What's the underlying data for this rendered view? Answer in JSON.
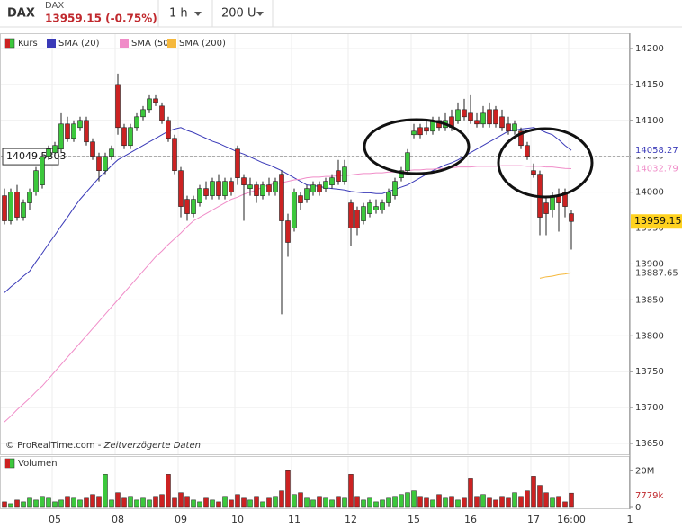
{
  "header": {
    "symbol": "DAX",
    "name": "DAX",
    "price": "13959.15 (-0.75%)",
    "interval": "1 h",
    "units": "200 U"
  },
  "chart_data": {
    "type": "candlestick",
    "candle_name": "Kurs",
    "up_color": "#3cc83c",
    "down_color": "#cc2222",
    "categories": [
      null,
      null,
      null,
      null,
      null,
      null,
      null,
      null,
      "05",
      null,
      null,
      null,
      null,
      null,
      null,
      null,
      null,
      null,
      "08",
      null,
      null,
      null,
      null,
      null,
      null,
      null,
      null,
      null,
      "09",
      null,
      null,
      null,
      null,
      null,
      null,
      null,
      null,
      "10",
      null,
      null,
      null,
      null,
      null,
      null,
      null,
      null,
      "11",
      null,
      null,
      null,
      null,
      null,
      null,
      null,
      null,
      "12",
      null,
      null,
      null,
      null,
      null,
      null,
      null,
      null,
      null,
      "15",
      null,
      null,
      null,
      null,
      null,
      null,
      null,
      null,
      "16",
      null,
      null,
      null,
      null,
      null,
      null,
      null,
      null,
      null,
      "17",
      null,
      null,
      null,
      null,
      null,
      "16:00"
    ],
    "candles": [
      [
        13995,
        14005,
        13955,
        13960
      ],
      [
        13960,
        14005,
        13955,
        14000
      ],
      [
        14000,
        14010,
        13960,
        13965
      ],
      [
        13965,
        13990,
        13960,
        13985
      ],
      [
        13985,
        14005,
        13975,
        14000
      ],
      [
        14000,
        14035,
        13995,
        14030
      ],
      [
        14010,
        14055,
        14005,
        14050
      ],
      [
        14050,
        14065,
        14045,
        14060
      ],
      [
        14055,
        14070,
        14050,
        14065
      ],
      [
        14060,
        14110,
        14055,
        14095
      ],
      [
        14095,
        14105,
        14070,
        14075
      ],
      [
        14075,
        14100,
        14070,
        14095
      ],
      [
        14090,
        14105,
        14085,
        14100
      ],
      [
        14100,
        14105,
        14065,
        14070
      ],
      [
        14070,
        14075,
        14045,
        14050
      ],
      [
        14050,
        14055,
        14015,
        14030
      ],
      [
        14030,
        14055,
        14025,
        14050
      ],
      [
        14050,
        14065,
        14045,
        14060
      ],
      [
        14150,
        14165,
        14080,
        14090
      ],
      [
        14090,
        14095,
        14060,
        14065
      ],
      [
        14065,
        14095,
        14060,
        14090
      ],
      [
        14090,
        14110,
        14085,
        14105
      ],
      [
        14105,
        14120,
        14100,
        14115
      ],
      [
        14115,
        14135,
        14110,
        14130
      ],
      [
        14130,
        14135,
        14120,
        14125
      ],
      [
        14120,
        14125,
        14095,
        14100
      ],
      [
        14100,
        14105,
        14070,
        14075
      ],
      [
        14075,
        14080,
        14025,
        14030
      ],
      [
        14030,
        14035,
        13965,
        13980
      ],
      [
        13990,
        13995,
        13960,
        13970
      ],
      [
        13970,
        13995,
        13965,
        13990
      ],
      [
        13985,
        14010,
        13980,
        14005
      ],
      [
        14005,
        14015,
        13990,
        13995
      ],
      [
        13995,
        14020,
        13990,
        14015
      ],
      [
        14015,
        14025,
        13990,
        13995
      ],
      [
        13995,
        14020,
        13990,
        14015
      ],
      [
        14015,
        14020,
        13995,
        14000
      ],
      [
        14060,
        14065,
        14010,
        14020
      ],
      [
        14020,
        14025,
        13960,
        14010
      ],
      [
        14005,
        14020,
        13995,
        14010
      ],
      [
        14010,
        14015,
        13985,
        13995
      ],
      [
        13995,
        14015,
        13990,
        14010
      ],
      [
        14010,
        14020,
        13995,
        14000
      ],
      [
        14000,
        14020,
        13995,
        14015
      ],
      [
        14025,
        14030,
        13830,
        13960
      ],
      [
        13960,
        13970,
        13910,
        13930
      ],
      [
        13950,
        14005,
        13945,
        14000
      ],
      [
        13995,
        14000,
        13975,
        13985
      ],
      [
        13990,
        14010,
        13985,
        14005
      ],
      [
        14000,
        14015,
        13995,
        14010
      ],
      [
        14010,
        14015,
        13995,
        14000
      ],
      [
        14005,
        14020,
        14000,
        14015
      ],
      [
        14010,
        14025,
        14005,
        14020
      ],
      [
        14030,
        14045,
        14010,
        14015
      ],
      [
        14015,
        14045,
        14010,
        14035
      ],
      [
        13985,
        13990,
        13925,
        13950
      ],
      [
        13975,
        13980,
        13940,
        13950
      ],
      [
        13960,
        13985,
        13955,
        13980
      ],
      [
        13970,
        13990,
        13965,
        13985
      ],
      [
        13975,
        13990,
        13970,
        13980
      ],
      [
        13975,
        13990,
        13970,
        13985
      ],
      [
        13985,
        14005,
        13980,
        14000
      ],
      [
        13995,
        14020,
        13990,
        14015
      ],
      [
        14020,
        14035,
        14015,
        14030
      ],
      [
        14030,
        14060,
        14025,
        14055
      ],
      [
        14080,
        14095,
        14075,
        14085
      ],
      [
        14090,
        14095,
        14075,
        14080
      ],
      [
        14090,
        14100,
        14080,
        14085
      ],
      [
        14085,
        14105,
        14080,
        14100
      ],
      [
        14100,
        14105,
        14085,
        14090
      ],
      [
        14090,
        14110,
        14085,
        14100
      ],
      [
        14105,
        14115,
        14085,
        14090
      ],
      [
        14100,
        14125,
        14095,
        14115
      ],
      [
        14115,
        14130,
        14100,
        14105
      ],
      [
        14110,
        14135,
        14095,
        14100
      ],
      [
        14100,
        14110,
        14090,
        14095
      ],
      [
        14095,
        14120,
        14090,
        14110
      ],
      [
        14115,
        14125,
        14090,
        14095
      ],
      [
        14115,
        14120,
        14090,
        14095
      ],
      [
        14105,
        14115,
        14085,
        14090
      ],
      [
        14095,
        14105,
        14080,
        14085
      ],
      [
        14085,
        14100,
        14080,
        14095
      ],
      [
        14085,
        14090,
        14060,
        14065
      ],
      [
        14065,
        14070,
        14045,
        14050
      ],
      [
        14030,
        14040,
        14020,
        14025
      ],
      [
        14025,
        14030,
        13940,
        13965
      ],
      [
        13985,
        13995,
        13940,
        13970
      ],
      [
        13975,
        14000,
        13965,
        13995
      ],
      [
        13995,
        14005,
        13945,
        13985
      ],
      [
        14000,
        14005,
        13965,
        13980
      ],
      [
        13970,
        13975,
        13920,
        13959.15
      ]
    ],
    "series": [
      {
        "name": "SMA (20)",
        "color": "#3a3ab8",
        "values": [
          13860,
          13868,
          13875,
          13883,
          13890,
          13903,
          13915,
          13928,
          13940,
          13953,
          13965,
          13978,
          13990,
          14000,
          14010,
          14020,
          14028,
          14037,
          14045,
          14050,
          14055,
          14060,
          14065,
          14070,
          14075,
          14080,
          14085,
          14088,
          14090,
          14086,
          14083,
          14079,
          14075,
          14071,
          14068,
          14064,
          14060,
          14056,
          14053,
          14049,
          14045,
          14041,
          14038,
          14034,
          14030,
          14025,
          14020,
          14015,
          14010,
          14009,
          14008,
          14006,
          14005,
          14004,
          14003,
          14001,
          14000,
          13999,
          13999,
          13998,
          13998,
          14001,
          14004,
          14007,
          14010,
          14015,
          14020,
          14025,
          14030,
          14034,
          14038,
          14041,
          14045,
          14050,
          14055,
          14060,
          14065,
          14070,
          14075,
          14080,
          14085,
          14086,
          14088,
          14089,
          14090,
          14087,
          14083,
          14080,
          14073,
          14065,
          14058.27
        ]
      },
      {
        "name": "SMA (50)",
        "color": "#f08cc8",
        "values": [
          13680,
          13688,
          13697,
          13705,
          13713,
          13722,
          13730,
          13740,
          13750,
          13760,
          13770,
          13780,
          13790,
          13800,
          13810,
          13820,
          13830,
          13840,
          13850,
          13860,
          13870,
          13880,
          13890,
          13900,
          13910,
          13918,
          13927,
          13935,
          13943,
          13952,
          13960,
          13965,
          13970,
          13975,
          13980,
          13985,
          13990,
          13993,
          13997,
          14000,
          14003,
          14007,
          14010,
          14012,
          14013,
          14015,
          14017,
          14018,
          14020,
          14021,
          14021,
          14022,
          14022,
          14023,
          14023,
          14024,
          14025,
          14026,
          14026,
          14027,
          14027,
          14028,
          14028,
          14029,
          14030,
          14031,
          14031,
          14032,
          14032,
          14033,
          14033,
          14034,
          14035,
          14035,
          14035,
          14036,
          14036,
          14036,
          14036,
          14037,
          14037,
          14037,
          14037,
          14036,
          14036,
          14036,
          14035,
          14035,
          14034,
          14033,
          14032.79
        ]
      },
      {
        "name": "SMA (200)",
        "color": "#f5b83c",
        "values": [
          null,
          null,
          null,
          null,
          null,
          null,
          null,
          null,
          null,
          null,
          null,
          null,
          null,
          null,
          null,
          null,
          null,
          null,
          null,
          null,
          null,
          null,
          null,
          null,
          null,
          null,
          null,
          null,
          null,
          null,
          null,
          null,
          null,
          null,
          null,
          null,
          null,
          null,
          null,
          null,
          null,
          null,
          null,
          null,
          null,
          null,
          null,
          null,
          null,
          null,
          null,
          null,
          null,
          null,
          null,
          null,
          null,
          null,
          null,
          null,
          null,
          null,
          null,
          null,
          null,
          null,
          null,
          null,
          null,
          null,
          null,
          null,
          null,
          null,
          null,
          null,
          null,
          null,
          null,
          null,
          null,
          null,
          null,
          null,
          null,
          13880,
          13882,
          13883,
          13885,
          13886,
          13887.65
        ]
      }
    ],
    "ylim": [
      13635,
      14217.5
    ],
    "yticks": [
      13650,
      13700,
      13750,
      13800,
      13850,
      13900,
      13950,
      14000,
      14050,
      14100,
      14150,
      14200
    ],
    "grid": true,
    "reference_line": 14049.5303,
    "volume": {
      "title": "Volumen",
      "values": [
        3,
        2,
        4,
        3,
        5,
        4,
        6,
        5,
        3,
        4,
        6,
        5,
        4,
        5,
        7,
        6,
        18,
        4,
        8,
        5,
        6,
        4,
        5,
        4,
        6,
        7,
        18,
        5,
        8,
        6,
        4,
        3,
        5,
        4,
        3,
        6,
        4,
        7,
        5,
        4,
        6,
        3,
        5,
        6,
        9,
        20,
        7,
        8,
        5,
        4,
        6,
        5,
        4,
        6,
        5,
        18,
        6,
        4,
        5,
        3,
        4,
        5,
        6,
        7,
        8,
        9,
        6,
        5,
        4,
        7,
        5,
        6,
        4,
        5,
        16,
        6,
        7,
        5,
        4,
        6,
        5,
        8,
        6,
        9,
        17,
        12,
        8,
        5,
        6,
        3,
        7.779
      ],
      "value_labels": [
        null,
        null,
        null,
        null,
        null,
        null,
        null,
        null,
        null,
        null,
        null,
        null,
        null,
        null,
        null,
        null,
        null,
        null,
        null,
        null,
        null,
        null,
        null,
        null,
        null,
        null,
        null,
        null,
        null,
        null,
        null,
        null,
        null,
        null,
        null,
        null,
        null,
        null,
        null,
        null,
        null,
        null,
        null,
        null,
        null,
        null,
        null,
        null,
        null,
        null,
        null,
        null,
        null,
        null,
        null,
        null,
        null,
        null,
        null,
        null,
        null,
        null,
        null,
        null,
        null,
        null,
        null,
        null,
        null,
        null,
        null,
        null,
        null,
        null,
        null,
        null,
        null,
        null,
        null,
        null,
        null,
        null,
        null,
        null,
        null,
        null,
        null,
        null,
        null,
        null,
        "7779k"
      ],
      "ylim": [
        0,
        28
      ],
      "yticks": [
        {
          "value": 20,
          "label": "20M"
        },
        0
      ]
    },
    "source": "© ProRealTime.com - ",
    "source_note": "Zeitverzögerte Daten",
    "axis_end_label": "1"
  }
}
